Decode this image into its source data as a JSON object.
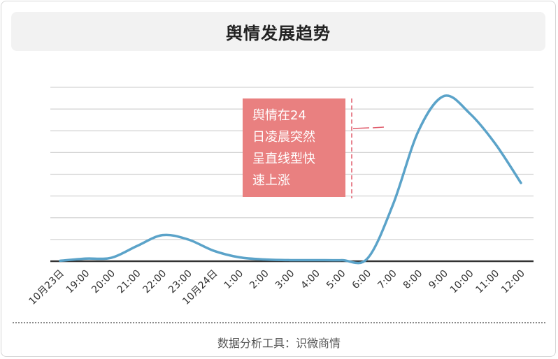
{
  "header": {
    "title": "舆情发展趋势"
  },
  "footer": {
    "source": "数据分析工具：识微商情"
  },
  "chart_data": {
    "type": "line",
    "title": "舆情发展趋势",
    "categories": [
      "10月23日",
      "19:00",
      "20:00",
      "21:00",
      "22:00",
      "23:00",
      "10月24日",
      "1:00",
      "2:00",
      "3:00",
      "4:00",
      "5:00",
      "6:00",
      "7:00",
      "8:00",
      "9:00",
      "10:00",
      "11:00",
      "12:00"
    ],
    "values": [
      0.2,
      1.2,
      1.6,
      7.0,
      12.0,
      10.0,
      4.8,
      1.8,
      0.8,
      0.5,
      0.5,
      0.5,
      1.2,
      26.0,
      60.0,
      76.0,
      68.0,
      54.0,
      36.0
    ],
    "ylim": [
      0,
      80
    ],
    "gridlines": 8,
    "grid": true,
    "line_color": "#5ba3c9",
    "annotation": {
      "text_lines": [
        "舆情在24",
        "日凌晨突然",
        "呈直线型快",
        "速上涨"
      ],
      "background": "#e98080",
      "text_color": "#ffffff"
    }
  }
}
